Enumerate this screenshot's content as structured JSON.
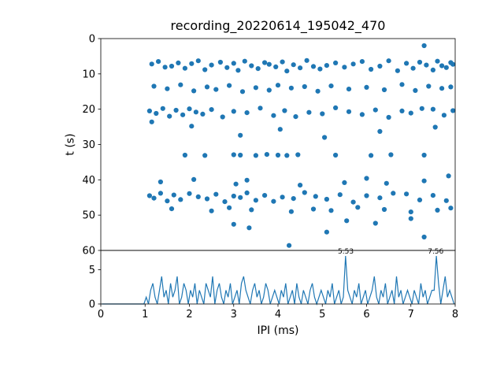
{
  "figure": {
    "background": "#ffffff",
    "accent_color": "#1f77b4"
  },
  "chart_data": [
    {
      "type": "scatter",
      "title": "recording_20220614_195042_470",
      "xlabel": "",
      "ylabel": "t (s)",
      "xlim": [
        0,
        8
      ],
      "ylim": [
        0,
        60
      ],
      "y_inverted": true,
      "yticks": [
        0,
        10,
        20,
        30,
        40,
        50,
        60
      ],
      "marker_color": "#1f77b4",
      "points": [
        [
          7.3,
          2.0
        ],
        [
          1.15,
          7.2
        ],
        [
          1.3,
          6.5
        ],
        [
          1.45,
          8.1
        ],
        [
          1.6,
          7.8
        ],
        [
          1.75,
          6.9
        ],
        [
          1.9,
          8.4
        ],
        [
          2.05,
          7.1
        ],
        [
          2.2,
          6.3
        ],
        [
          2.35,
          8.8
        ],
        [
          2.5,
          7.5
        ],
        [
          2.7,
          6.7
        ],
        [
          2.85,
          8.2
        ],
        [
          3.0,
          7.0
        ],
        [
          3.1,
          9.0
        ],
        [
          3.25,
          6.4
        ],
        [
          3.4,
          7.7
        ],
        [
          3.55,
          8.5
        ],
        [
          3.7,
          6.8
        ],
        [
          3.8,
          7.3
        ],
        [
          3.95,
          8.0
        ],
        [
          4.1,
          6.6
        ],
        [
          4.2,
          9.2
        ],
        [
          4.35,
          7.4
        ],
        [
          4.5,
          8.3
        ],
        [
          4.65,
          6.2
        ],
        [
          4.8,
          7.9
        ],
        [
          4.95,
          8.6
        ],
        [
          5.1,
          7.6
        ],
        [
          5.3,
          6.9
        ],
        [
          5.5,
          8.1
        ],
        [
          5.7,
          7.2
        ],
        [
          5.9,
          6.5
        ],
        [
          6.1,
          8.7
        ],
        [
          6.3,
          7.8
        ],
        [
          6.5,
          6.3
        ],
        [
          6.7,
          9.1
        ],
        [
          6.9,
          7.0
        ],
        [
          7.05,
          8.4
        ],
        [
          7.2,
          6.7
        ],
        [
          7.35,
          7.5
        ],
        [
          7.5,
          8.9
        ],
        [
          7.6,
          6.4
        ],
        [
          7.7,
          7.7
        ],
        [
          7.8,
          8.2
        ],
        [
          7.9,
          6.8
        ],
        [
          7.95,
          7.3
        ],
        [
          1.2,
          13.5
        ],
        [
          1.5,
          14.2
        ],
        [
          1.8,
          13.1
        ],
        [
          2.1,
          14.8
        ],
        [
          2.4,
          13.7
        ],
        [
          2.6,
          14.4
        ],
        [
          2.9,
          13.3
        ],
        [
          3.2,
          15.0
        ],
        [
          3.5,
          13.9
        ],
        [
          3.8,
          14.6
        ],
        [
          4.0,
          13.2
        ],
        [
          4.3,
          14.0
        ],
        [
          4.6,
          13.6
        ],
        [
          4.9,
          14.9
        ],
        [
          5.2,
          13.4
        ],
        [
          5.6,
          14.3
        ],
        [
          6.0,
          13.8
        ],
        [
          6.4,
          14.5
        ],
        [
          6.8,
          13.0
        ],
        [
          7.1,
          14.7
        ],
        [
          7.4,
          13.5
        ],
        [
          7.7,
          14.1
        ],
        [
          7.9,
          13.7
        ],
        [
          1.1,
          20.5
        ],
        [
          1.25,
          21.2
        ],
        [
          1.4,
          19.8
        ],
        [
          1.55,
          22.0
        ],
        [
          1.7,
          20.3
        ],
        [
          1.85,
          21.6
        ],
        [
          2.0,
          19.9
        ],
        [
          2.15,
          20.8
        ],
        [
          2.3,
          21.4
        ],
        [
          2.5,
          20.1
        ],
        [
          2.75,
          22.2
        ],
        [
          3.0,
          20.6
        ],
        [
          3.3,
          21.0
        ],
        [
          3.6,
          19.7
        ],
        [
          3.9,
          21.8
        ],
        [
          4.15,
          20.4
        ],
        [
          4.4,
          22.1
        ],
        [
          4.7,
          20.9
        ],
        [
          5.0,
          21.3
        ],
        [
          5.3,
          19.6
        ],
        [
          5.6,
          20.7
        ],
        [
          5.9,
          21.5
        ],
        [
          6.2,
          20.2
        ],
        [
          6.5,
          22.3
        ],
        [
          6.8,
          20.5
        ],
        [
          7.0,
          21.1
        ],
        [
          7.25,
          19.8
        ],
        [
          7.5,
          20.0
        ],
        [
          7.75,
          21.7
        ],
        [
          7.95,
          20.4
        ],
        [
          1.15,
          23.6
        ],
        [
          2.05,
          24.8
        ],
        [
          3.15,
          27.4
        ],
        [
          4.05,
          25.7
        ],
        [
          5.05,
          28.0
        ],
        [
          6.3,
          26.3
        ],
        [
          7.55,
          25.1
        ],
        [
          1.9,
          33.0
        ],
        [
          2.35,
          33.1
        ],
        [
          3.0,
          32.9
        ],
        [
          3.15,
          33.0
        ],
        [
          3.5,
          33.1
        ],
        [
          3.75,
          32.8
        ],
        [
          4.0,
          33.0
        ],
        [
          4.2,
          33.1
        ],
        [
          4.45,
          32.9
        ],
        [
          5.3,
          33.0
        ],
        [
          6.1,
          33.1
        ],
        [
          6.55,
          32.9
        ],
        [
          7.3,
          33.0
        ],
        [
          1.35,
          40.6
        ],
        [
          2.1,
          39.9
        ],
        [
          3.05,
          41.2
        ],
        [
          3.3,
          40.1
        ],
        [
          4.5,
          41.5
        ],
        [
          5.5,
          40.8
        ],
        [
          6.0,
          39.6
        ],
        [
          6.45,
          41.0
        ],
        [
          7.3,
          40.3
        ],
        [
          7.85,
          38.9
        ],
        [
          1.1,
          44.5
        ],
        [
          1.2,
          45.2
        ],
        [
          1.35,
          43.8
        ],
        [
          1.5,
          46.0
        ],
        [
          1.65,
          44.3
        ],
        [
          1.8,
          45.6
        ],
        [
          2.0,
          43.9
        ],
        [
          2.2,
          44.8
        ],
        [
          2.4,
          45.4
        ],
        [
          2.6,
          44.1
        ],
        [
          2.8,
          46.2
        ],
        [
          3.0,
          44.6
        ],
        [
          3.15,
          45.0
        ],
        [
          3.3,
          43.7
        ],
        [
          3.5,
          45.8
        ],
        [
          3.7,
          44.4
        ],
        [
          3.9,
          46.1
        ],
        [
          4.1,
          44.9
        ],
        [
          4.35,
          45.3
        ],
        [
          4.6,
          43.6
        ],
        [
          4.85,
          44.7
        ],
        [
          5.1,
          45.5
        ],
        [
          5.4,
          44.2
        ],
        [
          5.7,
          46.3
        ],
        [
          6.0,
          44.5
        ],
        [
          6.3,
          45.1
        ],
        [
          6.6,
          43.8
        ],
        [
          6.9,
          44.0
        ],
        [
          7.2,
          45.7
        ],
        [
          7.5,
          44.4
        ],
        [
          7.8,
          45.9
        ],
        [
          1.6,
          48.2
        ],
        [
          2.5,
          48.8
        ],
        [
          2.9,
          47.9
        ],
        [
          3.4,
          48.5
        ],
        [
          4.3,
          49.0
        ],
        [
          4.8,
          48.3
        ],
        [
          5.2,
          48.7
        ],
        [
          5.8,
          47.8
        ],
        [
          6.4,
          48.4
        ],
        [
          7.0,
          49.1
        ],
        [
          7.6,
          48.6
        ],
        [
          7.9,
          48.0
        ],
        [
          3.0,
          52.6
        ],
        [
          3.35,
          53.6
        ],
        [
          4.25,
          58.6
        ],
        [
          5.1,
          54.8
        ],
        [
          5.55,
          51.6
        ],
        [
          6.2,
          52.3
        ],
        [
          7.3,
          56.2
        ],
        [
          7.0,
          51.0
        ]
      ]
    },
    {
      "type": "line",
      "xlabel": "IPI (ms)",
      "ylabel": "",
      "xlim": [
        0,
        8
      ],
      "ylim": [
        0,
        7.8
      ],
      "yticks": [
        0,
        5
      ],
      "xticks": [
        0,
        1,
        2,
        3,
        4,
        5,
        6,
        7,
        8
      ],
      "line_color": "#1f77b4",
      "x_start": 0,
      "bin_width": 0.05,
      "values": [
        0,
        0,
        0,
        0,
        0,
        0,
        0,
        0,
        0,
        0,
        0,
        0,
        0,
        0,
        0,
        0,
        0,
        0,
        0,
        0,
        1,
        0,
        2,
        3,
        1,
        0,
        2,
        4,
        1,
        2,
        0,
        3,
        1,
        2,
        4,
        0,
        1,
        3,
        2,
        0,
        2,
        1,
        3,
        0,
        2,
        1,
        0,
        3,
        2,
        1,
        4,
        0,
        2,
        3,
        1,
        0,
        2,
        1,
        3,
        0,
        1,
        2,
        0,
        3,
        4,
        2,
        1,
        0,
        2,
        3,
        1,
        2,
        0,
        1,
        3,
        2,
        0,
        1,
        2,
        1,
        0,
        2,
        1,
        3,
        0,
        1,
        2,
        0,
        3,
        1,
        0,
        2,
        1,
        0,
        2,
        3,
        1,
        0,
        1,
        2,
        1,
        0,
        2,
        1,
        3,
        0,
        1,
        2,
        0,
        1,
        7,
        2,
        1,
        0,
        2,
        1,
        3,
        0,
        1,
        2,
        0,
        1,
        2,
        4,
        1,
        0,
        2,
        1,
        3,
        0,
        1,
        2,
        0,
        4,
        1,
        2,
        0,
        1,
        2,
        1,
        0,
        2,
        1,
        0,
        3,
        1,
        2,
        0,
        1,
        2,
        2,
        7,
        3,
        0,
        2,
        4,
        1,
        2,
        1,
        0
      ],
      "annotations": [
        {
          "x": 5.53,
          "y": 7,
          "label": "5.53"
        },
        {
          "x": 7.56,
          "y": 7,
          "label": "7.56"
        }
      ]
    }
  ]
}
